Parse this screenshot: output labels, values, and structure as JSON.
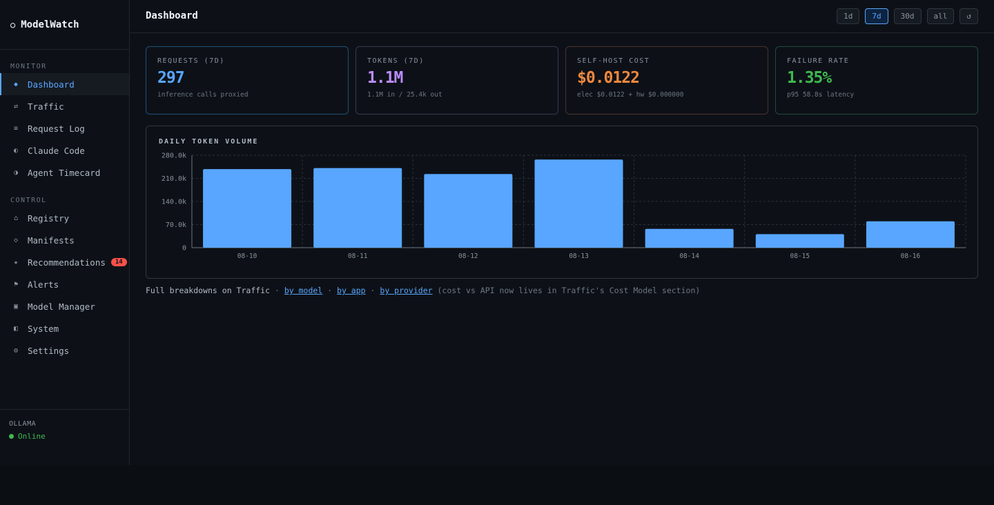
{
  "brand": {
    "name": "ModelWatch",
    "icon": "circle-icon"
  },
  "sidebar": {
    "monitor_label": "MONITOR",
    "monitor_items": [
      {
        "label": "Dashboard",
        "icon": "◆",
        "active": true
      },
      {
        "label": "Traffic",
        "icon": "⇄"
      },
      {
        "label": "Request Log",
        "icon": "≡"
      },
      {
        "label": "Claude Code",
        "icon": "◐"
      },
      {
        "label": "Agent Timecard",
        "icon": "◑"
      }
    ],
    "control_label": "CONTROL",
    "control_items": [
      {
        "label": "Registry",
        "icon": "⌂"
      },
      {
        "label": "Manifests",
        "icon": "◇"
      },
      {
        "label": "Recommendations",
        "icon": "★",
        "badge": "14"
      },
      {
        "label": "Alerts",
        "icon": "⚑"
      },
      {
        "label": "Model Manager",
        "icon": "▣"
      },
      {
        "label": "System",
        "icon": "◧"
      },
      {
        "label": "Settings",
        "icon": "⚙"
      }
    ],
    "footer": {
      "label": "OLLAMA",
      "status": "Online"
    }
  },
  "header": {
    "title": "Dashboard",
    "ranges": [
      "1d",
      "7d",
      "30d",
      "all"
    ],
    "active_range": "7d",
    "refresh_icon": "↺"
  },
  "cards": [
    {
      "label": "REQUESTS (7D)",
      "value": "297",
      "sub": "inference calls proxied",
      "color": "#58a6ff",
      "border": "#1f4e79"
    },
    {
      "label": "TOKENS (7D)",
      "value": "1.1M",
      "sub": "1.1M in / 25.4k out",
      "color": "#bc8cff",
      "border": "#3b3552"
    },
    {
      "label": "SELF-HOST COST",
      "value": "$0.0122",
      "sub": "elec $0.0122 + hw $0.000000",
      "color": "#f0883e",
      "border": "#4a3230"
    },
    {
      "label": "FAILURE RATE",
      "value": "1.35%",
      "sub": "p95 58.8s latency",
      "color": "#3fb950",
      "border": "#1f4a3a"
    }
  ],
  "chart": {
    "title": "DAILY TOKEN VOLUME"
  },
  "chart_data": {
    "type": "bar",
    "title": "DAILY TOKEN VOLUME",
    "categories": [
      "08-10",
      "08-11",
      "08-12",
      "08-13",
      "08-14",
      "08-15",
      "08-16"
    ],
    "values": [
      238000,
      241000,
      223000,
      267000,
      57000,
      41000,
      80000
    ],
    "yticks": [
      0,
      70000,
      140000,
      210000,
      280000
    ],
    "ytick_labels": [
      "0",
      "70.0k",
      "140.0k",
      "210.0k",
      "280.0k"
    ],
    "ylim": [
      0,
      280000
    ],
    "bar_color": "#58a6ff",
    "grid": true
  },
  "footnote": {
    "lead": "Full breakdowns on Traffic",
    "sep": "·",
    "links": [
      "by model",
      "by app",
      "by provider"
    ],
    "tail": "(cost vs API now lives in Traffic's Cost Model section)"
  }
}
